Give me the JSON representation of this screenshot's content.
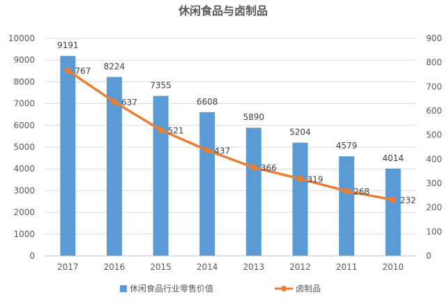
{
  "chart_data": {
    "type": "bar+line",
    "title": "休闲食品与卤制品",
    "categories": [
      "2017",
      "2016",
      "2015",
      "2014",
      "2013",
      "2012",
      "2011",
      "2010"
    ],
    "series": [
      {
        "name": "休闲食品行业零售价值",
        "type": "bar",
        "axis": "left",
        "color": "#5b9bd5",
        "values": [
          9191,
          8224,
          7355,
          6608,
          5890,
          5204,
          4579,
          4014
        ]
      },
      {
        "name": "卤制品",
        "type": "line",
        "axis": "right",
        "color": "#ed7d31",
        "values": [
          767,
          637,
          521,
          437,
          366,
          319,
          268,
          232
        ]
      }
    ],
    "y_left": {
      "min": 0,
      "max": 10000,
      "step": 1000
    },
    "y_right": {
      "min": 0,
      "max": 900,
      "step": 100
    },
    "grid": true,
    "legend": "bottom"
  }
}
